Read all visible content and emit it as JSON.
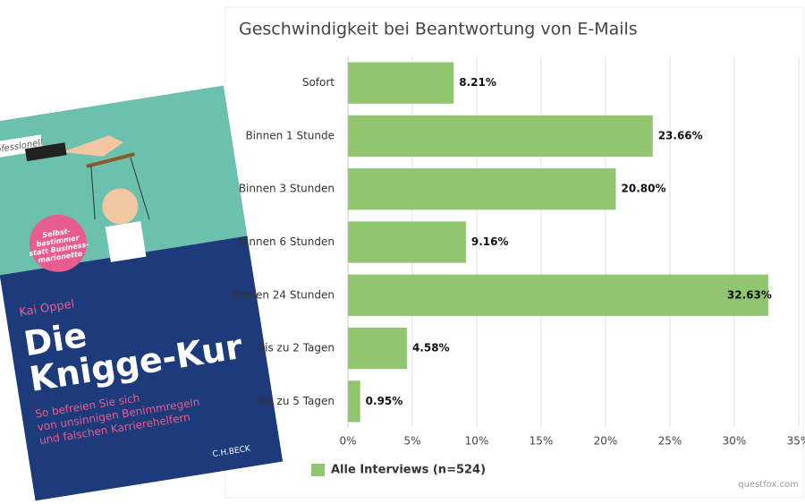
{
  "chart_data": {
    "type": "hbar",
    "title": "Geschwindigkeit bei Beantwortung von E-Mails",
    "categories": [
      "Sofort",
      "Binnen 1 Stunde",
      "Binnen 3 Stunden",
      "Binnen 6 Stunden",
      "Binnen 24 Stunden",
      "Bis zu 2 Tagen",
      "Bis zu 5 Tagen"
    ],
    "series": [
      {
        "name": "Alle Interviews (n=524)",
        "color": "#92c56f",
        "values": [
          8.21,
          23.66,
          20.8,
          9.16,
          32.63,
          4.58,
          0.95
        ],
        "value_labels": [
          "8.21%",
          "23.66%",
          "20.80%",
          "9.16%",
          "32.63%",
          "4.58%",
          "0.95%"
        ]
      }
    ],
    "xlim": [
      0,
      35
    ],
    "xticks": [
      {
        "value": 0,
        "label": "0%"
      },
      {
        "value": 5,
        "label": "5%"
      },
      {
        "value": 10,
        "label": "10%"
      },
      {
        "value": 15,
        "label": "15%"
      },
      {
        "value": 20,
        "label": "20%"
      },
      {
        "value": 25,
        "label": "25%"
      },
      {
        "value": 30,
        "label": "30%"
      },
      {
        "value": 35,
        "label": "35%"
      }
    ],
    "grid": true,
    "legend": "bottom-left",
    "source": "questfox.com"
  },
  "book_cover": {
    "series_label": "professionell",
    "badge": [
      "Selbst-",
      "bestimmer",
      "statt Business-",
      "marionette"
    ],
    "author": "Kai Oppel",
    "title": [
      "Die",
      "Knigge-Kur"
    ],
    "subtitle": [
      "So befreien Sie sich",
      "von unsinnigen Benimmregeln",
      "und falschen Karrierehelfern"
    ],
    "publisher": "C.H.BECK"
  }
}
